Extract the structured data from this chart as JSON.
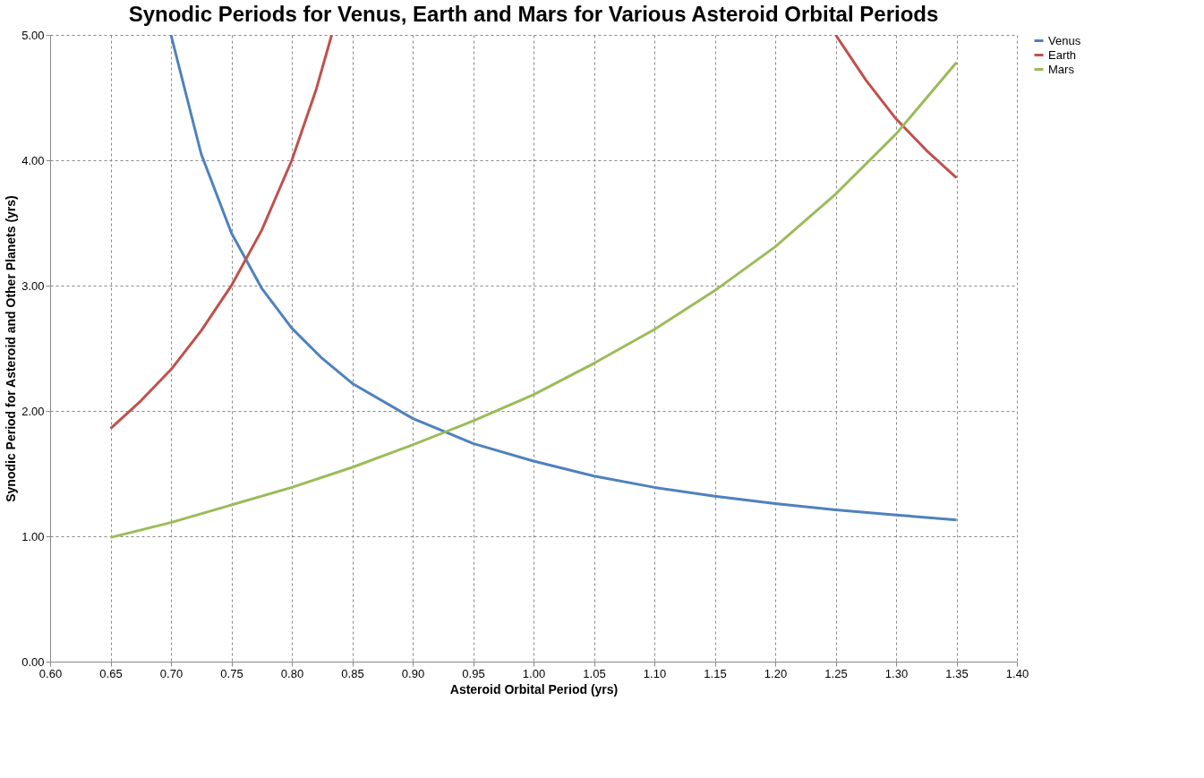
{
  "chart_data": {
    "type": "line",
    "title": "Synodic Periods for Venus, Earth and Mars for Various Asteroid Orbital Periods",
    "xlabel": "Asteroid Orbital Period (yrs)",
    "ylabel": "Synodic Period for Asteroid and Other Planets (yrs)",
    "series": [
      {
        "name": "Venus",
        "color": "#4f81bd",
        "x": [
          0.7,
          0.725,
          0.75,
          0.775,
          0.8,
          0.825,
          0.85,
          0.9,
          0.95,
          1.0,
          1.05,
          1.1,
          1.15,
          1.2,
          1.25,
          1.3,
          1.35
        ],
        "values": [
          5.0,
          4.05,
          3.42,
          2.98,
          2.66,
          2.42,
          2.22,
          1.94,
          1.74,
          1.6,
          1.48,
          1.39,
          1.32,
          1.26,
          1.21,
          1.17,
          1.13
        ]
      },
      {
        "name": "Earth",
        "color": "#c0504d",
        "x": [
          0.65,
          0.675,
          0.7,
          0.725,
          0.75,
          0.775,
          0.8,
          0.82,
          0.833,
          1.0,
          1.25,
          1.275,
          1.3,
          1.325,
          1.35
        ],
        "values": [
          1.86,
          2.08,
          2.33,
          2.64,
          3.0,
          3.44,
          4.0,
          4.56,
          5.0,
          null,
          5.0,
          4.64,
          4.33,
          4.08,
          3.86
        ]
      },
      {
        "name": "Mars",
        "color": "#9bbb59",
        "x": [
          0.65,
          0.7,
          0.75,
          0.8,
          0.85,
          0.9,
          0.95,
          1.0,
          1.05,
          1.1,
          1.15,
          1.2,
          1.25,
          1.3,
          1.35
        ],
        "values": [
          0.99,
          1.11,
          1.25,
          1.39,
          1.55,
          1.73,
          1.92,
          2.13,
          2.38,
          2.65,
          2.96,
          3.31,
          3.73,
          4.21,
          4.78
        ]
      }
    ],
    "xlim": [
      0.6,
      1.4
    ],
    "xticks": [
      {
        "value": 0.6,
        "label": "0.60"
      },
      {
        "value": 0.65,
        "label": "0.65"
      },
      {
        "value": 0.7,
        "label": "0.70"
      },
      {
        "value": 0.75,
        "label": "0.75"
      },
      {
        "value": 0.8,
        "label": "0.80"
      },
      {
        "value": 0.85,
        "label": "0.85"
      },
      {
        "value": 0.9,
        "label": "0.90"
      },
      {
        "value": 0.95,
        "label": "0.95"
      },
      {
        "value": 1.0,
        "label": "1.00"
      },
      {
        "value": 1.05,
        "label": "1.05"
      },
      {
        "value": 1.1,
        "label": "1.10"
      },
      {
        "value": 1.15,
        "label": "1.15"
      },
      {
        "value": 1.2,
        "label": "1.20"
      },
      {
        "value": 1.25,
        "label": "1.25"
      },
      {
        "value": 1.3,
        "label": "1.30"
      },
      {
        "value": 1.35,
        "label": "1.35"
      },
      {
        "value": 1.4,
        "label": "1.40"
      }
    ],
    "ylim": [
      0,
      5
    ],
    "yticks": [
      {
        "value": 0,
        "label": "0.00"
      },
      {
        "value": 1,
        "label": "1.00"
      },
      {
        "value": 2,
        "label": "2.00"
      },
      {
        "value": 3,
        "label": "3.00"
      },
      {
        "value": 4,
        "label": "4.00"
      },
      {
        "value": 5,
        "label": "5.00"
      }
    ],
    "grid": true,
    "legend": "right",
    "marker": "none",
    "line_style": "solid"
  }
}
